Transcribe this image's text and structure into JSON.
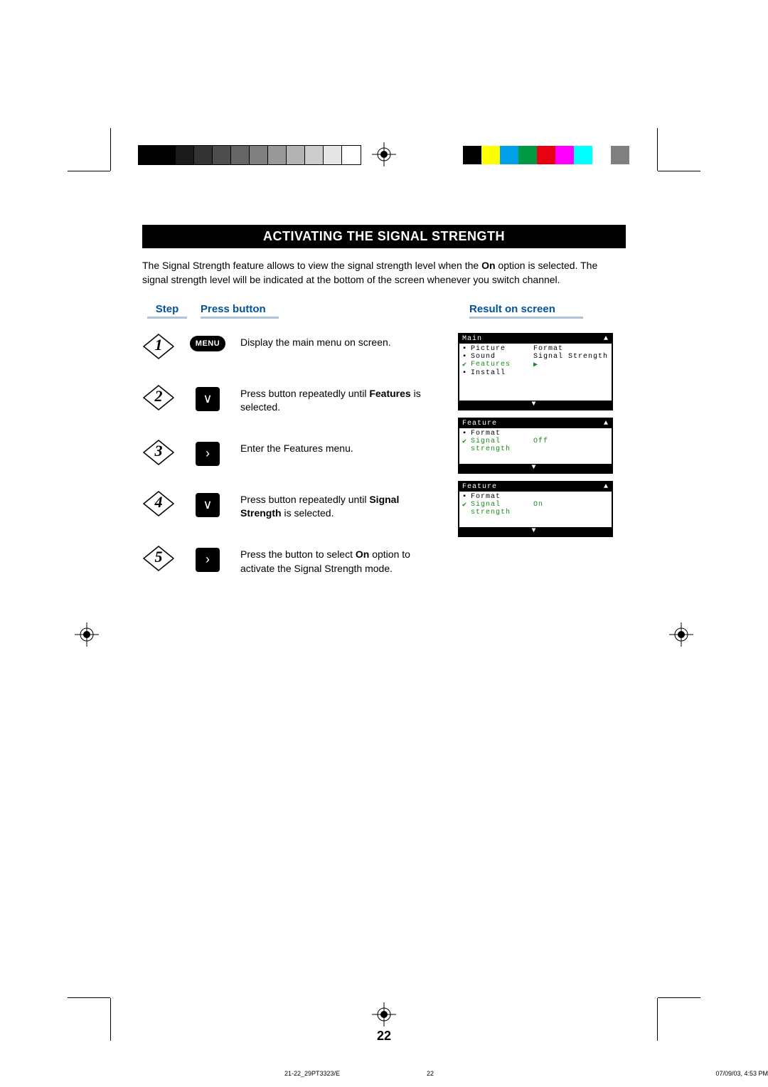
{
  "print": {
    "gray_swatches": [
      "#000000",
      "#000000",
      "#1a1a1a",
      "#333333",
      "#4d4d4d",
      "#666666",
      "#808080",
      "#999999",
      "#b3b3b3",
      "#cccccc",
      "#e6e6e6",
      "#ffffff"
    ],
    "color_swatches": [
      "#000000",
      "#ffff00",
      "#00a0e9",
      "#009944",
      "#e60012",
      "#ff00ff",
      "#00ffff",
      "#ffffff",
      "#808080"
    ]
  },
  "title": "ACTIVATING THE SIGNAL STRENGTH",
  "intro_pre": "The Signal Strength feature allows to view the signal strength level when the ",
  "intro_bold": "On",
  "intro_post": " option is selected. The signal strength level will be indicated at the bottom of the screen whenever you switch channel.",
  "headers": {
    "step": "Step",
    "button": "Press button",
    "result": "Result on screen"
  },
  "steps": [
    {
      "n": "1",
      "btn_type": "menu",
      "btn_label": "MENU",
      "text_pre": "Display the main menu on screen.",
      "bold": "",
      "text_post": ""
    },
    {
      "n": "2",
      "btn_type": "arrow",
      "btn_label": "∨",
      "text_pre": "Press button repeatedly until ",
      "bold": "Features",
      "text_post": " is selected."
    },
    {
      "n": "3",
      "btn_type": "arrow",
      "btn_label": "›",
      "text_pre": "Enter the Features menu.",
      "bold": "",
      "text_post": ""
    },
    {
      "n": "4",
      "btn_type": "arrow",
      "btn_label": "∨",
      "text_pre": "Press button repeatedly until ",
      "bold": "Signal Strength",
      "text_post": " is selected."
    },
    {
      "n": "5",
      "btn_type": "arrow",
      "btn_label": "›",
      "text_pre": "Press the button to select ",
      "bold": "On",
      "text_post": " option to activate the Signal Strength mode."
    }
  ],
  "osd": {
    "main": {
      "title": "Main",
      "rows": [
        {
          "mark": "▪",
          "label": "Picture",
          "val": "Format",
          "sel": false
        },
        {
          "mark": "▪",
          "label": "Sound",
          "val": "Signal Strength",
          "sel": false
        },
        {
          "mark": "✔",
          "label": "Features",
          "val": "▶",
          "sel": true
        },
        {
          "mark": "▪",
          "label": "Install",
          "val": "",
          "sel": false
        }
      ]
    },
    "feat_off": {
      "title": "Feature",
      "rows": [
        {
          "mark": "▪",
          "label": "Format",
          "val": "",
          "sel": false
        },
        {
          "mark": "✔",
          "label": "Signal strength",
          "val": "Off",
          "sel": true
        }
      ]
    },
    "feat_on": {
      "title": "Feature",
      "rows": [
        {
          "mark": "▪",
          "label": "Format",
          "val": "",
          "sel": false
        },
        {
          "mark": "✔",
          "label": "Signal strength",
          "val": "On",
          "sel": true
        }
      ]
    },
    "up": "▲",
    "down": "▼"
  },
  "page_number": "22",
  "footer": {
    "file": "21-22_29PT3323/E",
    "page": "22",
    "date": "07/09/03, 4:53 PM"
  }
}
